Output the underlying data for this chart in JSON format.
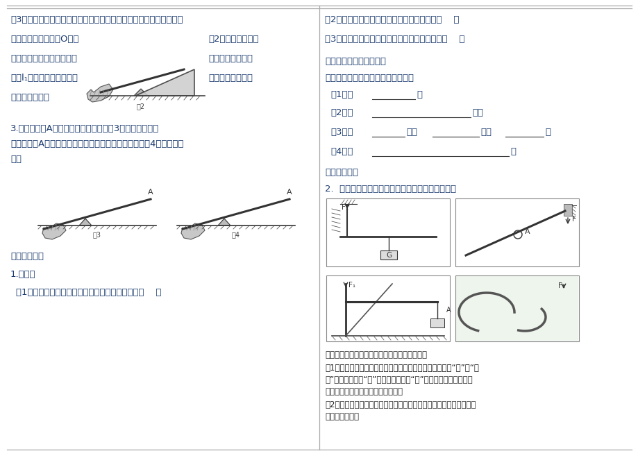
{
  "bg_color": "#ffffff",
  "text_color": "#1a3a6e",
  "line_color": "#888888",
  "left_col": {
    "para3_line1": "（3）利用直角三角板的两个直角边，一条边与动力重合，移动直尺使",
    "para3_line2": "另一条直角边过支点O，如",
    "para3_line2b": "图2。沿此边画虚线",
    "para3_line3": "就是动力臂，在三角板的直",
    "para3_line3b": "角处画垂直符号，",
    "para3_line4": "并标l₁，照上法画阻力臂，",
    "para3_line4b": "阻力作用线不够长",
    "para3_line5": "可用虚线延长。",
    "q3_line1": "3.如果动力在A点，垂直于杆向下，在图3中画出五要素。",
    "q3_line2": "如果动力在A点，垂直于杆向上，那支点又在哪儿？在图4中画出五要",
    "q3_line3": "素。",
    "practice_header": "【针对训练】",
    "q1_header": "1.判断题",
    "q1_1": "（1）支点总是在动力作用点与阻力作用点之间。（    ）"
  },
  "right_col": {
    "r1": "（2）支点到动力作用点的距离就是动力臂。（    ）",
    "r2": "（3）动力臂和阻力臂不一定都在杠杆本身上。（    ）",
    "r3_header": "探究点二：画杠杆的力臂",
    "r3_q": "你能总结一下画力臂的一般步骤吗？",
    "practice_header": "【针对训练】",
    "r4_q": "2.  在下列图中，找支点，画出动力、阻力的力臂。",
    "summary_title": "知识归纳：关于力臂的概念，要注意以下几点：",
    "summary1": "（1）力臂是支点到力的作用线的距离，从几何上来看，是“点”到“直",
    "summary2": "线”的距离。其中“点”为杠杆的支点；“线”为力的作用线，即通过",
    "summary3": "力的作用点沿力的方向所画的直线。",
    "summary4": "（2）某一力作用在杠杆上，若作用点不变，但力的方向改变，那么力",
    "summary5": "臂一般要改变。"
  }
}
